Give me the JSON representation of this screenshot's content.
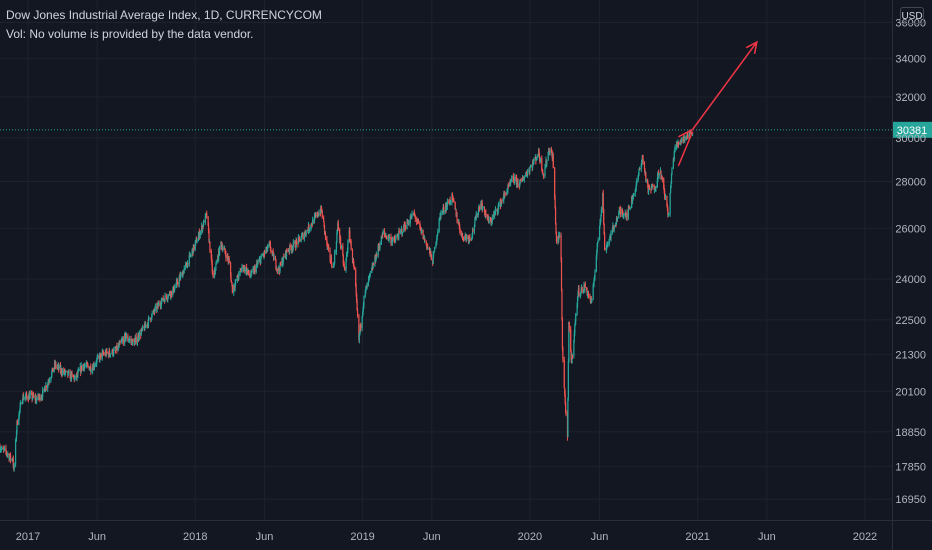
{
  "header": {
    "title": "Dow Jones Industrial Average Index, 1D, CURRENCYCOM",
    "volume_note": "Vol: No volume is provided by the data vendor."
  },
  "currency_button": "USD",
  "price_label": "30381",
  "colors": {
    "background": "#131722",
    "up": "#26a69a",
    "down": "#ef5350",
    "grid": "#1e222d",
    "text": "#b2b5be",
    "price_line": "#26a69a",
    "drawing": "#f23645"
  },
  "chart_data": {
    "type": "candlestick",
    "title": "Dow Jones Industrial Average Index, 1D, CURRENCYCOM",
    "scale": "log",
    "ylim": [
      16400,
      37300
    ],
    "xlim": [
      "2016-11-01",
      "2022-03-01"
    ],
    "y_ticks": [
      16950,
      17850,
      18850,
      20100,
      21300,
      22500,
      24000,
      26000,
      28000,
      30000,
      32000,
      34000,
      36000
    ],
    "x_ticks": [
      {
        "date": "2017-01-01",
        "label": "2017"
      },
      {
        "date": "2017-06-01",
        "label": "Jun"
      },
      {
        "date": "2018-01-01",
        "label": "2018"
      },
      {
        "date": "2018-06-01",
        "label": "Jun"
      },
      {
        "date": "2019-01-01",
        "label": "2019"
      },
      {
        "date": "2019-06-01",
        "label": "Jun"
      },
      {
        "date": "2020-01-01",
        "label": "2020"
      },
      {
        "date": "2020-06-01",
        "label": "Jun"
      },
      {
        "date": "2021-01-01",
        "label": "2021"
      },
      {
        "date": "2021-06-01",
        "label": "Jun"
      },
      {
        "date": "2022-01-01",
        "label": "2022"
      }
    ],
    "grid": true,
    "last_price": 30381,
    "price_path": [
      [
        "2016-11-01",
        18400
      ],
      [
        "2016-11-08",
        18300
      ],
      [
        "2016-11-15",
        18250
      ],
      [
        "2016-11-25",
        18050
      ],
      [
        "2016-11-29",
        18100
      ],
      [
        "2016-12-01",
        17700
      ],
      [
        "2016-12-08",
        19100
      ],
      [
        "2016-12-20",
        19900
      ],
      [
        "2017-01-05",
        19950
      ],
      [
        "2017-01-20",
        19850
      ],
      [
        "2017-02-01",
        20000
      ],
      [
        "2017-02-15",
        20450
      ],
      [
        "2017-03-01",
        20950
      ],
      [
        "2017-03-15",
        20750
      ],
      [
        "2017-04-15",
        20500
      ],
      [
        "2017-05-01",
        20950
      ],
      [
        "2017-05-20",
        20850
      ],
      [
        "2017-06-10",
        21300
      ],
      [
        "2017-07-10",
        21400
      ],
      [
        "2017-08-01",
        21900
      ],
      [
        "2017-08-20",
        21700
      ],
      [
        "2017-09-15",
        22300
      ],
      [
        "2017-10-15",
        23100
      ],
      [
        "2017-11-15",
        23600
      ],
      [
        "2017-12-15",
        24600
      ],
      [
        "2018-01-15",
        26000
      ],
      [
        "2018-01-26",
        26550
      ],
      [
        "2018-02-02",
        25200
      ],
      [
        "2018-02-09",
        24000
      ],
      [
        "2018-02-26",
        25400
      ],
      [
        "2018-03-15",
        24700
      ],
      [
        "2018-03-23",
        23600
      ],
      [
        "2018-04-15",
        24500
      ],
      [
        "2018-05-01",
        24100
      ],
      [
        "2018-05-25",
        24800
      ],
      [
        "2018-06-12",
        25300
      ],
      [
        "2018-07-01",
        24300
      ],
      [
        "2018-07-20",
        25100
      ],
      [
        "2018-08-10",
        25400
      ],
      [
        "2018-09-01",
        25900
      ],
      [
        "2018-10-03",
        26800
      ],
      [
        "2018-10-15",
        25300
      ],
      [
        "2018-10-29",
        24400
      ],
      [
        "2018-11-08",
        26100
      ],
      [
        "2018-11-23",
        24300
      ],
      [
        "2018-12-03",
        25800
      ],
      [
        "2018-12-15",
        24100
      ],
      [
        "2018-12-24",
        21800
      ],
      [
        "2019-01-05",
        23400
      ],
      [
        "2019-02-15",
        25800
      ],
      [
        "2019-03-10",
        25450
      ],
      [
        "2019-04-23",
        26600
      ],
      [
        "2019-05-15",
        25600
      ],
      [
        "2019-06-03",
        24700
      ],
      [
        "2019-06-20",
        26600
      ],
      [
        "2019-07-15",
        27300
      ],
      [
        "2019-08-05",
        25700
      ],
      [
        "2019-08-25",
        25600
      ],
      [
        "2019-09-15",
        27100
      ],
      [
        "2019-10-05",
        26200
      ],
      [
        "2019-10-30",
        27100
      ],
      [
        "2019-11-25",
        28100
      ],
      [
        "2019-12-10",
        27900
      ],
      [
        "2020-01-10",
        28900
      ],
      [
        "2020-01-20",
        29300
      ],
      [
        "2020-01-31",
        28300
      ],
      [
        "2020-02-12",
        29500
      ],
      [
        "2020-02-20",
        29100
      ],
      [
        "2020-02-28",
        25400
      ],
      [
        "2020-03-08",
        25800
      ],
      [
        "2020-03-12",
        21500
      ],
      [
        "2020-03-16",
        20200
      ],
      [
        "2020-03-23",
        18600
      ],
      [
        "2020-03-26",
        22300
      ],
      [
        "2020-04-01",
        21000
      ],
      [
        "2020-04-15",
        23500
      ],
      [
        "2020-05-01",
        23700
      ],
      [
        "2020-05-15",
        23100
      ],
      [
        "2020-06-08",
        27400
      ],
      [
        "2020-06-12",
        25100
      ],
      [
        "2020-06-25",
        25700
      ],
      [
        "2020-07-15",
        26700
      ],
      [
        "2020-08-01",
        26600
      ],
      [
        "2020-08-20",
        27800
      ],
      [
        "2020-09-02",
        29100
      ],
      [
        "2020-09-15",
        27600
      ],
      [
        "2020-10-01",
        27800
      ],
      [
        "2020-10-10",
        28600
      ],
      [
        "2020-10-30",
        26500
      ],
      [
        "2020-11-05",
        28300
      ],
      [
        "2020-11-12",
        29500
      ],
      [
        "2020-11-25",
        29900
      ],
      [
        "2020-12-10",
        30100
      ],
      [
        "2020-12-21",
        30381
      ]
    ],
    "annotations": [
      {
        "type": "pennant",
        "from": "2020-11-20",
        "to": "2020-12-21",
        "upper": [
          30050,
          30400
        ],
        "lower": [
          28700,
          30300
        ]
      },
      {
        "type": "arrow",
        "from": [
          "2020-12-21",
          30400
        ],
        "to": [
          "2021-05-10",
          34900
        ]
      }
    ]
  }
}
